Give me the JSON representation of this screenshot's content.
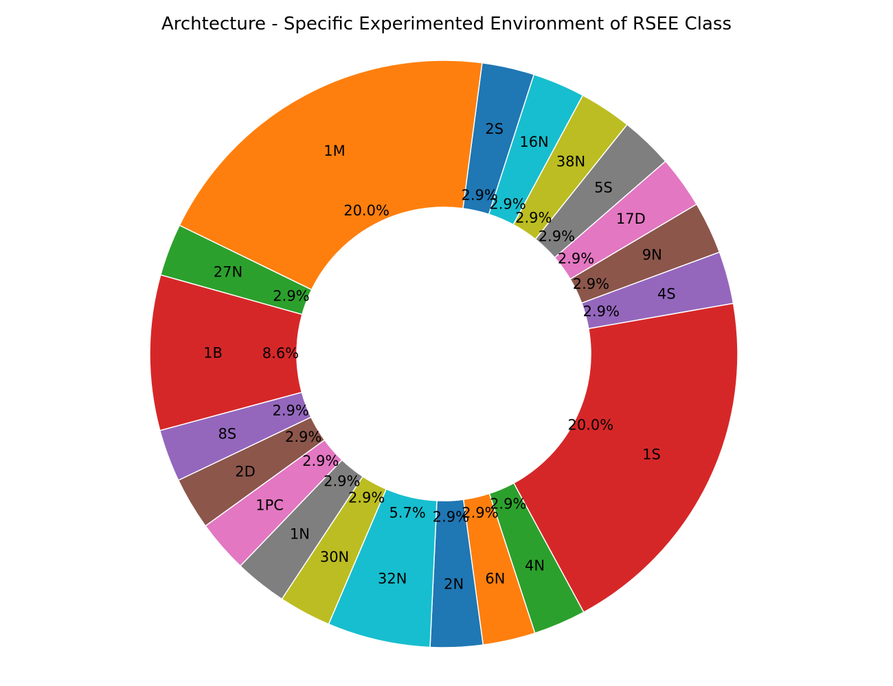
{
  "chart_data": {
    "type": "pie",
    "title": "Archtecture - Specific Experimented Environment of RSEE Class",
    "donut": true,
    "slices": [
      {
        "label": "2S",
        "value": 2.9,
        "pct": "2.9%",
        "color": "#1f77b4"
      },
      {
        "label": "16N",
        "value": 2.9,
        "pct": "2.9%",
        "color": "#17becf"
      },
      {
        "label": "38N",
        "value": 2.9,
        "pct": "2.9%",
        "color": "#bcbd22"
      },
      {
        "label": "5S",
        "value": 2.9,
        "pct": "2.9%",
        "color": "#7f7f7f"
      },
      {
        "label": "17D",
        "value": 2.9,
        "pct": "2.9%",
        "color": "#e377c2"
      },
      {
        "label": "9N",
        "value": 2.9,
        "pct": "2.9%",
        "color": "#8c564b"
      },
      {
        "label": "4S",
        "value": 2.9,
        "pct": "2.9%",
        "color": "#9467bd"
      },
      {
        "label": "1S",
        "value": 20.0,
        "pct": "20.0%",
        "color": "#d62728"
      },
      {
        "label": "4N",
        "value": 2.9,
        "pct": "2.9%",
        "color": "#2ca02c"
      },
      {
        "label": "6N",
        "value": 2.9,
        "pct": "2.9%",
        "color": "#ff7f0e"
      },
      {
        "label": "2N",
        "value": 2.9,
        "pct": "2.9%",
        "color": "#1f77b4"
      },
      {
        "label": "32N",
        "value": 5.7,
        "pct": "5.7%",
        "color": "#17becf"
      },
      {
        "label": "30N",
        "value": 2.9,
        "pct": "2.9%",
        "color": "#bcbd22"
      },
      {
        "label": "1N",
        "value": 2.9,
        "pct": "2.9%",
        "color": "#7f7f7f"
      },
      {
        "label": "1PC",
        "value": 2.9,
        "pct": "2.9%",
        "color": "#e377c2"
      },
      {
        "label": "2D",
        "value": 2.9,
        "pct": "2.9%",
        "color": "#8c564b"
      },
      {
        "label": "8S",
        "value": 2.9,
        "pct": "2.9%",
        "color": "#9467bd"
      },
      {
        "label": "1B",
        "value": 8.6,
        "pct": "8.6%",
        "color": "#d62728"
      },
      {
        "label": "27N",
        "value": 2.9,
        "pct": "2.9%",
        "color": "#2ca02c"
      },
      {
        "label": "1M",
        "value": 20.0,
        "pct": "20.0%",
        "color": "#ff7f0e"
      }
    ]
  }
}
